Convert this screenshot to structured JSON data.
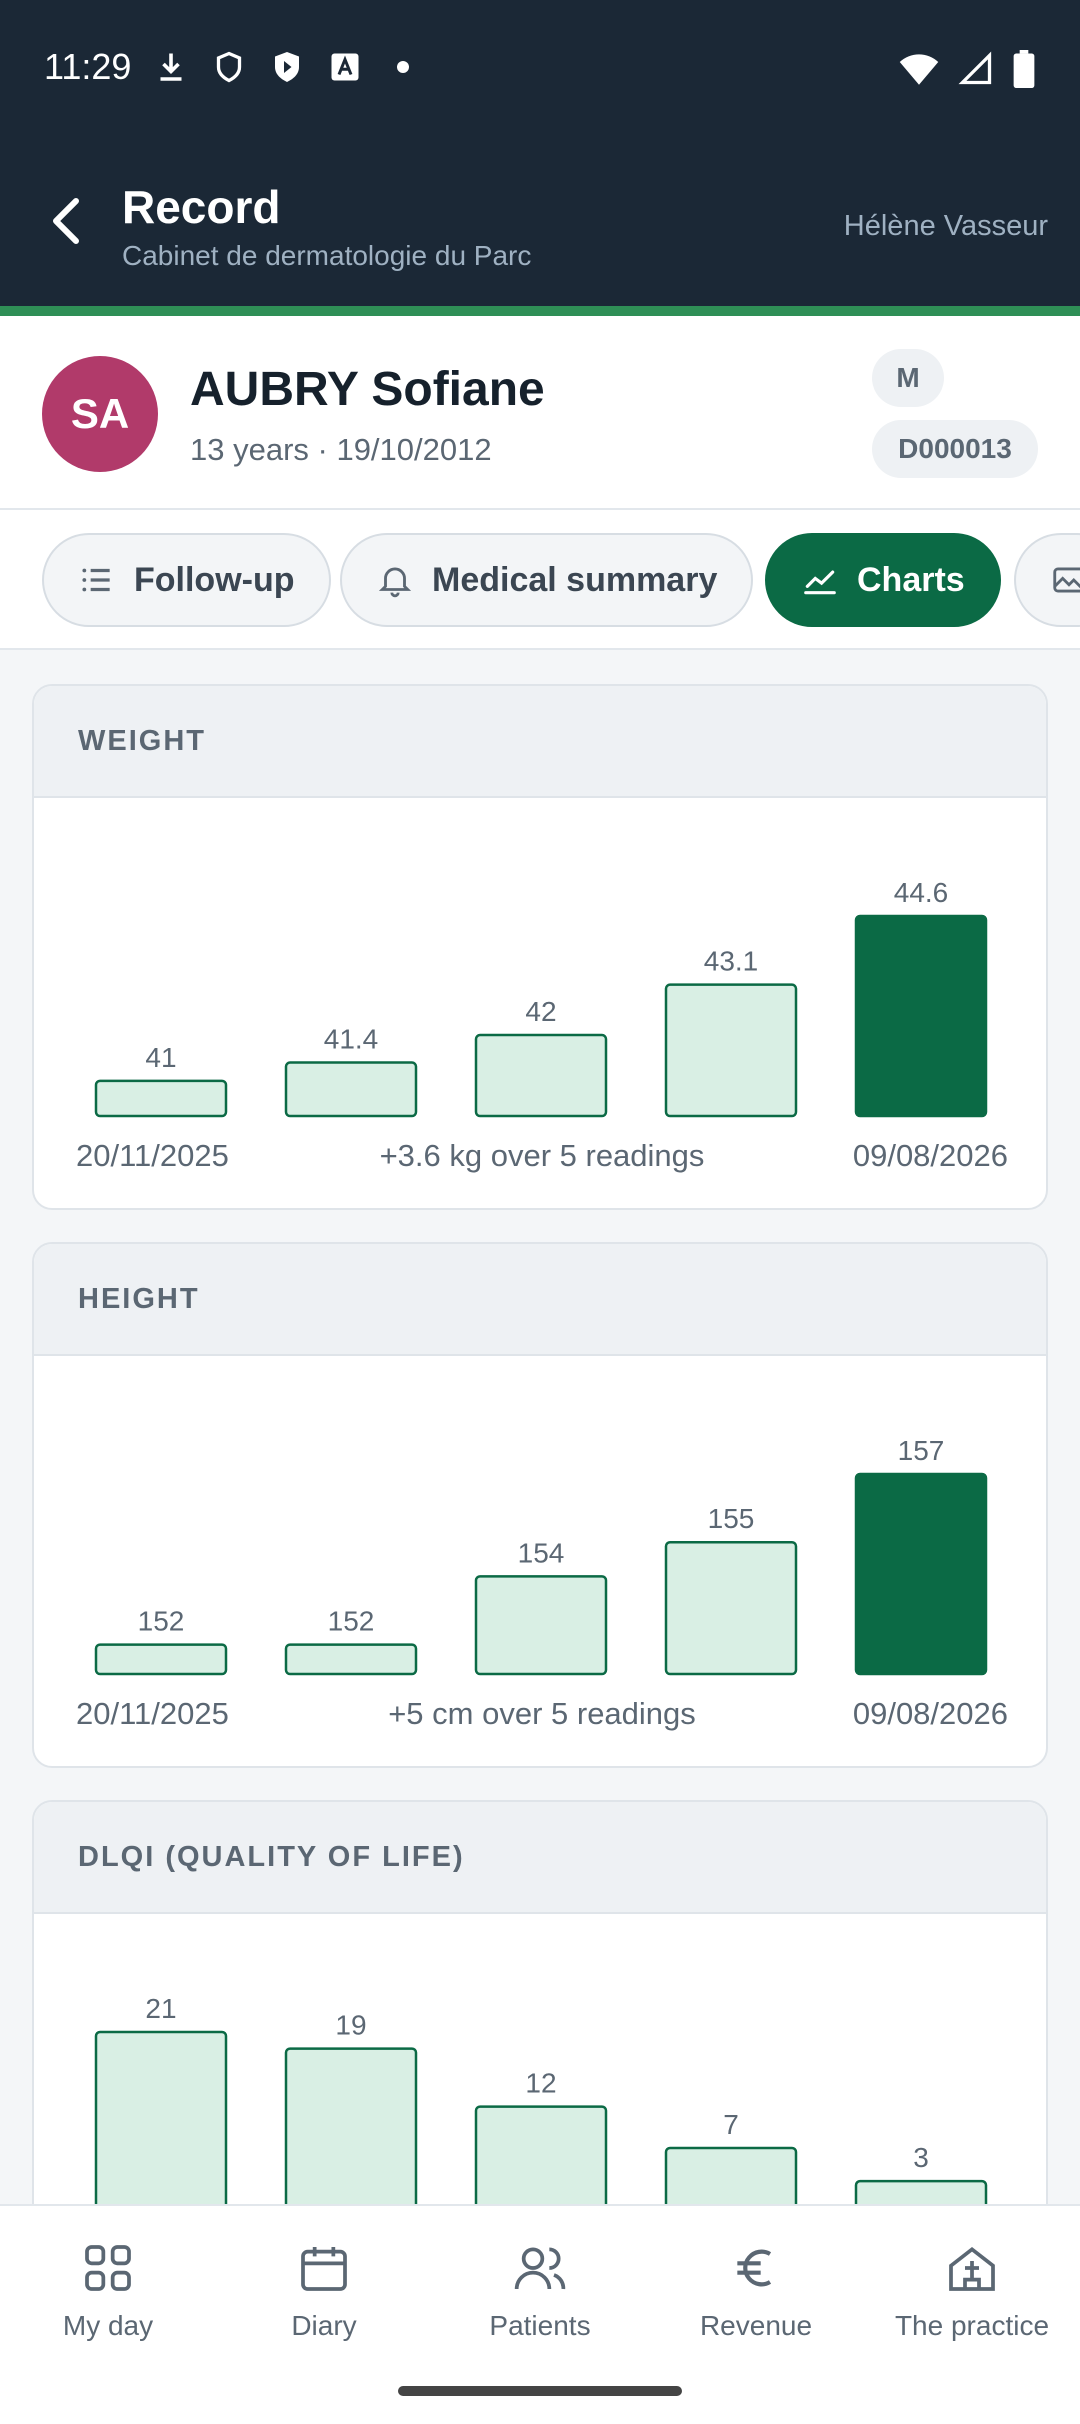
{
  "status_bar": {
    "time": "11:29"
  },
  "header": {
    "title": "Record",
    "subtitle": "Cabinet de dermatologie du Parc",
    "user": "Hélène Vasseur"
  },
  "patient": {
    "initials": "SA",
    "name": "AUBRY Sofiane",
    "meta": "13 years · 19/10/2012",
    "sex": "M",
    "id": "D000013",
    "avatar_color": "#b13a6a"
  },
  "tabs": [
    {
      "label": "Follow-up",
      "icon": "list-icon",
      "active": false
    },
    {
      "label": "Medical summary",
      "icon": "bell-icon",
      "active": false
    },
    {
      "label": "Charts",
      "icon": "chart-line-icon",
      "active": true
    },
    {
      "label": "",
      "icon": "image-icon",
      "active": false
    }
  ],
  "chart_data": [
    {
      "type": "bar",
      "title": "WEIGHT",
      "categories": [
        "20/11/2025",
        "",
        "",
        "",
        "09/08/2026"
      ],
      "values": [
        41,
        41.4,
        42,
        43.1,
        44.6
      ],
      "ylim": [
        40.8,
        44.6
      ],
      "start_label": "20/11/2025",
      "end_label": "09/08/2026",
      "summary": "+3.6 kg over 5 readings"
    },
    {
      "type": "bar",
      "title": "HEIGHT",
      "categories": [
        "20/11/2025",
        "",
        "",
        "",
        "09/08/2026"
      ],
      "values": [
        152,
        152,
        154,
        155,
        157
      ],
      "ylim": [
        151.9,
        157
      ],
      "start_label": "20/11/2025",
      "end_label": "09/08/2026",
      "summary": "+5 cm over 5 readings"
    },
    {
      "type": "bar",
      "title": "DLQI (QUALITY OF LIFE)",
      "values": [
        21,
        19,
        12,
        7,
        3
      ],
      "ylim": [
        0,
        21
      ]
    }
  ],
  "colors": {
    "header_bg": "#1b2836",
    "accent": "#2f8f56",
    "active_tab": "#0b6a45",
    "bar_fill": "#d9efe4",
    "bar_stroke": "#0b6a45",
    "bar_latest": "#0b6a45"
  },
  "bottom_nav": [
    {
      "label": "My day",
      "icon": "grid-icon"
    },
    {
      "label": "Diary",
      "icon": "calendar-icon"
    },
    {
      "label": "Patients",
      "icon": "users-icon"
    },
    {
      "label": "Revenue",
      "icon": "euro-icon"
    },
    {
      "label": "The practice",
      "icon": "practice-icon"
    }
  ]
}
